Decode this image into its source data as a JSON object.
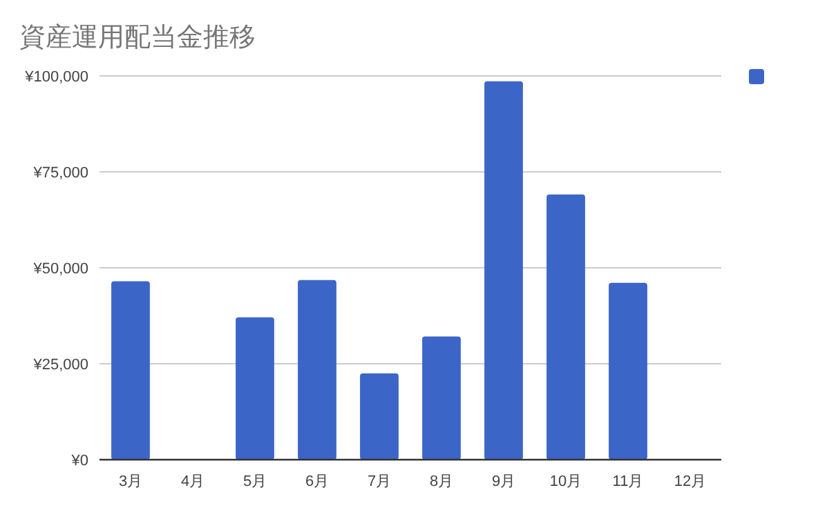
{
  "chart_data": {
    "type": "bar",
    "title": "資産運用配当金推移",
    "categories": [
      "3月",
      "4月",
      "5月",
      "6月",
      "7月",
      "8月",
      "9月",
      "10月",
      "11月",
      "12月"
    ],
    "series": [
      {
        "color": "#3c65c8",
        "values": [
          46500,
          0,
          37100,
          46800,
          22500,
          32100,
          98600,
          69100,
          46100,
          0
        ]
      }
    ],
    "ylim": [
      0,
      100000
    ],
    "yticks": [
      {
        "value": 0,
        "label": "¥0"
      },
      {
        "value": 25000,
        "label": "¥25,000"
      },
      {
        "value": 50000,
        "label": "¥50,000"
      },
      {
        "value": 75000,
        "label": "¥75,000"
      },
      {
        "value": 100000,
        "label": "¥100,000"
      }
    ],
    "grid": "y"
  }
}
